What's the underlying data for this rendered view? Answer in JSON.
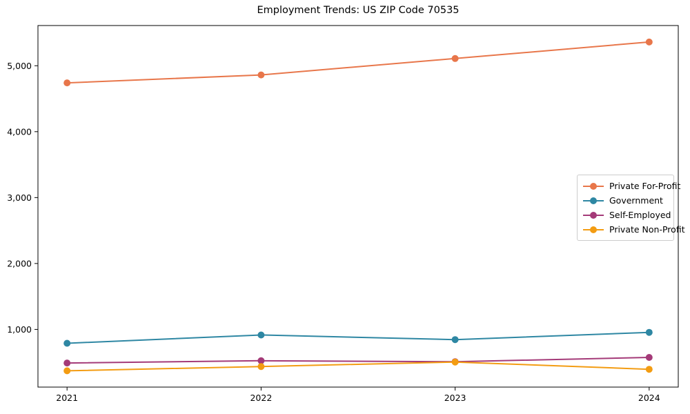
{
  "chart_data": {
    "type": "line",
    "title": "Employment Trends: US ZIP Code 70535",
    "xlabel": "",
    "ylabel": "",
    "x": [
      2021,
      2022,
      2023,
      2024
    ],
    "x_tick_labels": [
      "2021",
      "2022",
      "2023",
      "2024"
    ],
    "y_tick_values": [
      1000,
      2000,
      3000,
      4000,
      5000
    ],
    "y_tick_labels": [
      "1,000",
      "2,000",
      "3,000",
      "4,000",
      "5,000"
    ],
    "xlim": [
      2020.85,
      2024.15
    ],
    "ylim": [
      125,
      5610
    ],
    "grid": false,
    "marker": "o",
    "legend_position": "center-right",
    "axes_color": "#000000",
    "background_color": "#ffffff",
    "series": [
      {
        "name": "Private For-Profit",
        "color": "#e8764a",
        "values": [
          4740,
          4860,
          5110,
          5360
        ]
      },
      {
        "name": "Government",
        "color": "#2e87a3",
        "values": [
          790,
          915,
          845,
          955
        ]
      },
      {
        "name": "Self-Employed",
        "color": "#a43a78",
        "values": [
          490,
          525,
          510,
          575
        ]
      },
      {
        "name": "Private Non-Profit",
        "color": "#f39c12",
        "values": [
          372,
          437,
          505,
          395
        ]
      }
    ]
  }
}
